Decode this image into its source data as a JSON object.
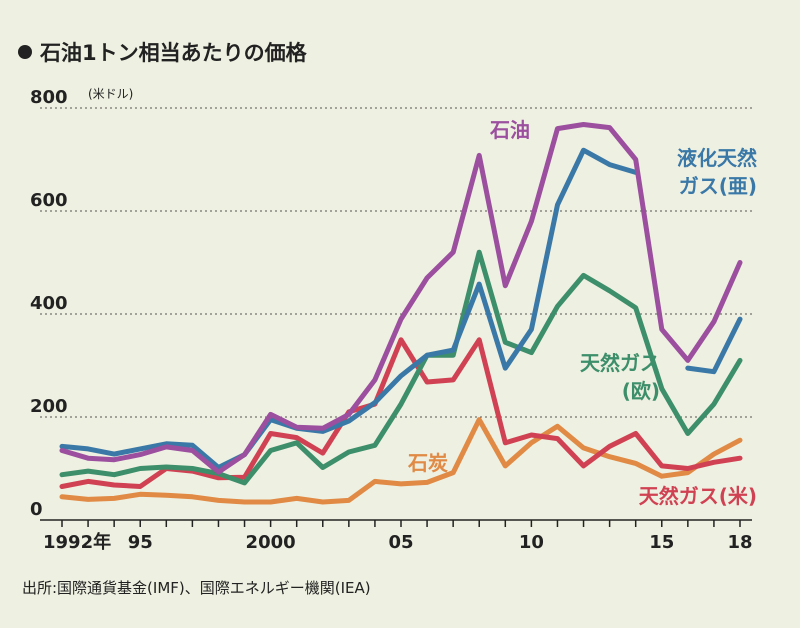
{
  "chart_data": {
    "type": "line",
    "title": "石油1トン相当あたりの価格",
    "unit": "(米ドル)",
    "ylim": [
      0,
      800
    ],
    "yticks": [
      0,
      200,
      400,
      600,
      800
    ],
    "xlim": [
      1992,
      2018
    ],
    "xticks": [
      {
        "x": 1992,
        "label": "1992年"
      },
      {
        "x": 1995,
        "label": "95"
      },
      {
        "x": 2000,
        "label": "2000"
      },
      {
        "x": 2005,
        "label": "05"
      },
      {
        "x": 2010,
        "label": "10"
      },
      {
        "x": 2015,
        "label": "15"
      },
      {
        "x": 2018,
        "label": "18"
      }
    ],
    "x": [
      1992,
      1993,
      1994,
      1995,
      1996,
      1997,
      1998,
      1999,
      2000,
      2001,
      2002,
      2003,
      2004,
      2005,
      2006,
      2007,
      2008,
      2009,
      2010,
      2011,
      2012,
      2013,
      2014,
      2015,
      2016,
      2017,
      2018
    ],
    "series": [
      {
        "name": "石油",
        "color": "#9b4f9e",
        "label_lines": [
          "石油"
        ],
        "values": [
          135,
          120,
          117,
          127,
          142,
          135,
          93,
          127,
          205,
          180,
          178,
          205,
          272,
          390,
          470,
          520,
          708,
          455,
          580,
          760,
          768,
          762,
          700,
          370,
          310,
          385,
          500
        ]
      },
      {
        "name": "液化天然ガス(亜)",
        "color": "#3a78a8",
        "label_lines": [
          "液化天然",
          "ガス(亜)"
        ],
        "values": [
          143,
          138,
          128,
          138,
          148,
          145,
          102,
          127,
          195,
          178,
          172,
          192,
          228,
          280,
          320,
          330,
          458,
          295,
          370,
          612,
          718,
          690,
          675,
          null,
          295,
          288,
          390
        ]
      },
      {
        "name": "天然ガス(欧)",
        "color": "#3d8e6a",
        "label_lines": [
          "天然ガス",
          "(欧)"
        ],
        "values": [
          88,
          95,
          88,
          100,
          103,
          100,
          90,
          72,
          135,
          150,
          102,
          132,
          145,
          225,
          320,
          320,
          520,
          345,
          325,
          415,
          475,
          445,
          412,
          255,
          168,
          225,
          310
        ]
      },
      {
        "name": "石炭",
        "color": "#e08a45",
        "label_lines": [
          "石炭"
        ],
        "values": [
          45,
          40,
          42,
          50,
          48,
          45,
          38,
          35,
          35,
          42,
          35,
          38,
          75,
          70,
          73,
          92,
          195,
          105,
          150,
          182,
          140,
          123,
          110,
          85,
          92,
          128,
          155
        ]
      },
      {
        "name": "天然ガス(米)",
        "color": "#d04253",
        "label_lines": [
          "天然ガス(米)"
        ],
        "values": [
          65,
          75,
          68,
          65,
          100,
          95,
          82,
          83,
          168,
          160,
          130,
          210,
          225,
          350,
          268,
          272,
          350,
          150,
          165,
          158,
          105,
          143,
          168,
          105,
          100,
          112,
          120
        ]
      }
    ]
  },
  "source": "出所:国際通貨基金(IMF)、国際エネルギー機関(IEA)"
}
